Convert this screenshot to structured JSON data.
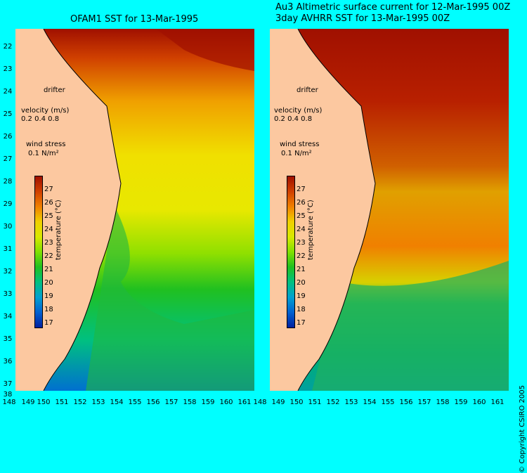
{
  "left_panel": {
    "title": "OFAM1 SST for 13-Mar-1995"
  },
  "right_panel": {
    "title_line1": "Au3 Altimetric surface current for 12-Mar-1995 00Z",
    "title_line2": "3day AVHRR SST for 13-Mar-1995 00Z"
  },
  "legend": {
    "drifter": "drifter",
    "velocity_label": "velocity (m/s)",
    "velocity_scale": "0.2 0.4 0.8",
    "wind_label": "wind stress",
    "wind_value": "0.1 N/m²"
  },
  "colorbar": {
    "title": "temperature (°C)",
    "ticks": [
      "27",
      "26",
      "25",
      "24",
      "23",
      "22",
      "21",
      "20",
      "19",
      "18",
      "17"
    ]
  },
  "latitude_labels": [
    "22",
    "23",
    "24",
    "25",
    "26",
    "27",
    "28",
    "29",
    "30",
    "31",
    "32",
    "33",
    "34",
    "35",
    "36",
    "37",
    "38"
  ],
  "longitude_labels": [
    "148",
    "149",
    "150",
    "151",
    "152",
    "153",
    "154",
    "155",
    "156",
    "157",
    "158",
    "159",
    "160",
    "161"
  ],
  "copyright": "© Copyright CSIRO 2005",
  "colors": {
    "background": "#00ffff",
    "land": "#fcc8a0",
    "drifter": "#ff00ff"
  }
}
